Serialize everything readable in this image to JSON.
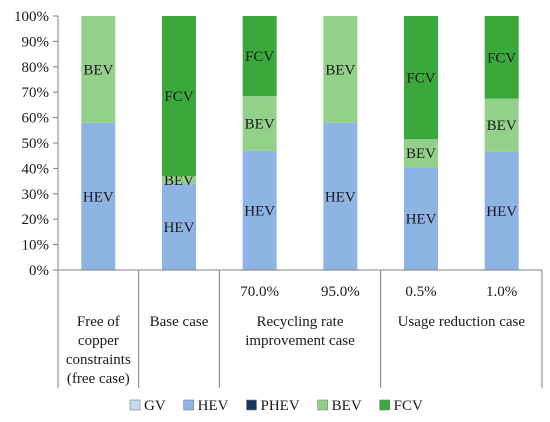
{
  "chart_data": {
    "type": "bar",
    "stacked": true,
    "y_ticks": [
      "0%",
      "10%",
      "20%",
      "30%",
      "40%",
      "50%",
      "60%",
      "70%",
      "80%",
      "90%",
      "100%"
    ],
    "ylim": [
      0,
      100
    ],
    "grid": false,
    "legend_position": "bottom",
    "categories": [
      "Free of copper constraints (free case)",
      "Base case",
      "70.0%",
      "95.0%",
      "0.5%",
      "1.0%"
    ],
    "groups": [
      {
        "lines": [
          "Free of",
          "copper",
          "constraints",
          "(free case)"
        ]
      },
      {
        "lines": [
          "Base case"
        ]
      },
      {
        "lines": [
          "Recycling rate",
          "improvement case"
        ]
      },
      {
        "lines": [
          "Usage reduction case"
        ]
      }
    ],
    "series": [
      {
        "name": "GV",
        "color": "#c5d9f1",
        "values": [
          0,
          0,
          0,
          0,
          0,
          0
        ]
      },
      {
        "name": "HEV",
        "color": "#8eb4e3",
        "values": [
          58,
          34,
          47,
          58,
          40.5,
          46.5
        ]
      },
      {
        "name": "PHEV",
        "color": "#17375e",
        "values": [
          0,
          0,
          0,
          0,
          0,
          0
        ]
      },
      {
        "name": "BEV",
        "color": "#93d08a",
        "values": [
          42,
          3,
          21.5,
          42,
          11,
          21
        ]
      },
      {
        "name": "FCV",
        "color": "#3aa83a",
        "values": [
          0,
          63,
          31.5,
          0,
          48.5,
          32.5
        ]
      }
    ]
  }
}
